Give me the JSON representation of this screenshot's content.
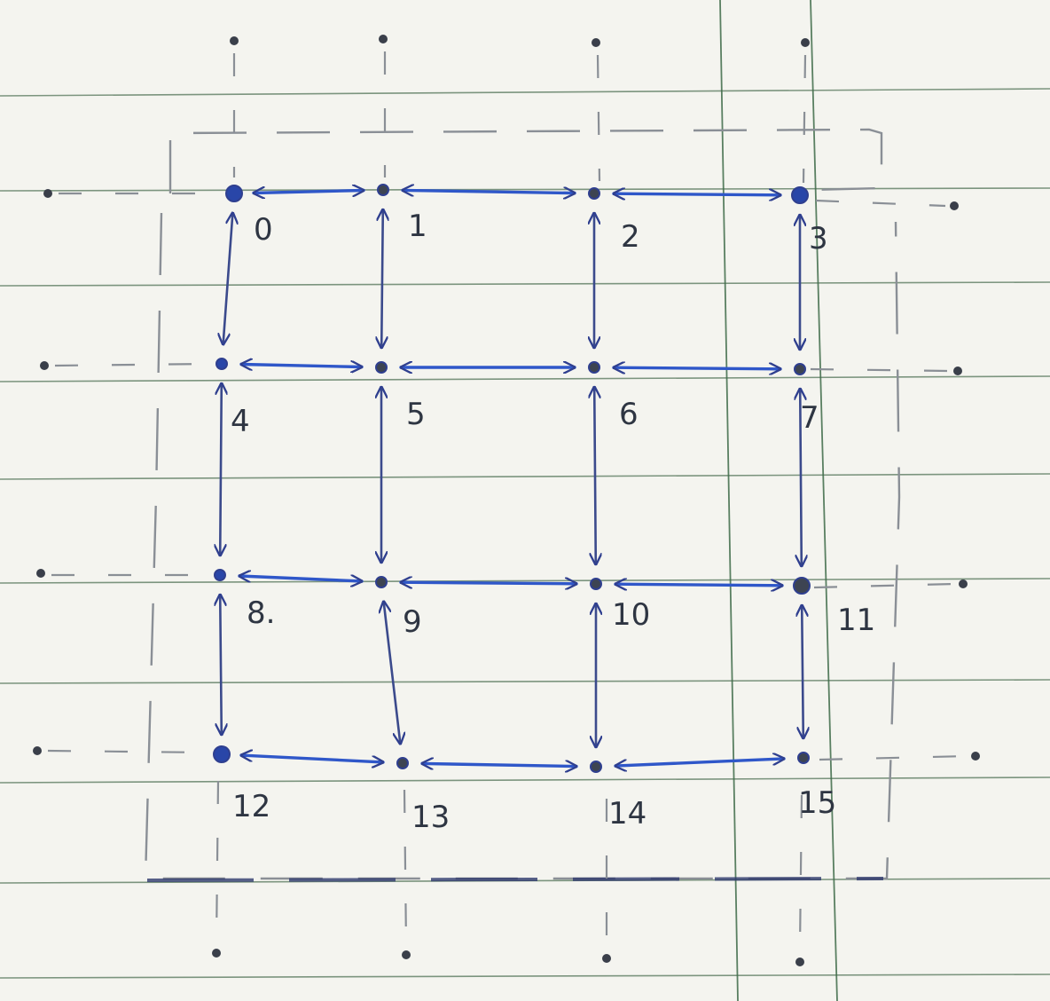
{
  "diagram": {
    "kind": "4x4 grid graph with bidirectional edges (hand-drawn on ruled paper)",
    "colors": {
      "paper": "#f4f4ef",
      "ruled_lines": "#5e7d62",
      "margin_lines": "#3f6b49",
      "ink_blue": "#2f57c9",
      "ink_dark": "#2f3745",
      "pencil": "#8a8f96"
    },
    "grid": {
      "rows": 4,
      "cols": 4
    },
    "nodes": [
      {
        "id": 0,
        "label": "0"
      },
      {
        "id": 1,
        "label": "1"
      },
      {
        "id": 2,
        "label": "2"
      },
      {
        "id": 3,
        "label": "3"
      },
      {
        "id": 4,
        "label": "4"
      },
      {
        "id": 5,
        "label": "5"
      },
      {
        "id": 6,
        "label": "6"
      },
      {
        "id": 7,
        "label": "7"
      },
      {
        "id": 8,
        "label": "8."
      },
      {
        "id": 9,
        "label": "9"
      },
      {
        "id": 10,
        "label": "10"
      },
      {
        "id": 11,
        "label": "11"
      },
      {
        "id": 12,
        "label": "12"
      },
      {
        "id": 13,
        "label": "13"
      },
      {
        "id": 14,
        "label": "14"
      },
      {
        "id": 15,
        "label": "15"
      }
    ],
    "edges": [
      {
        "from": 0,
        "to": 1
      },
      {
        "from": 1,
        "to": 2
      },
      {
        "from": 2,
        "to": 3
      },
      {
        "from": 4,
        "to": 5
      },
      {
        "from": 5,
        "to": 6
      },
      {
        "from": 6,
        "to": 7
      },
      {
        "from": 8,
        "to": 9
      },
      {
        "from": 9,
        "to": 10
      },
      {
        "from": 10,
        "to": 11
      },
      {
        "from": 12,
        "to": 13
      },
      {
        "from": 13,
        "to": 14
      },
      {
        "from": 14,
        "to": 15
      },
      {
        "from": 0,
        "to": 4
      },
      {
        "from": 4,
        "to": 8
      },
      {
        "from": 8,
        "to": 12
      },
      {
        "from": 1,
        "to": 5
      },
      {
        "from": 5,
        "to": 9
      },
      {
        "from": 9,
        "to": 13
      },
      {
        "from": 2,
        "to": 6
      },
      {
        "from": 6,
        "to": 10
      },
      {
        "from": 10,
        "to": 14
      },
      {
        "from": 3,
        "to": 7
      },
      {
        "from": 7,
        "to": 11
      },
      {
        "from": 11,
        "to": 15
      }
    ],
    "edge_direction": "bidirectional",
    "boundary": {
      "rectangle_style": "dashed pencil",
      "outer_points": "dashed stubs to a ring of small dots outside the grid"
    }
  }
}
